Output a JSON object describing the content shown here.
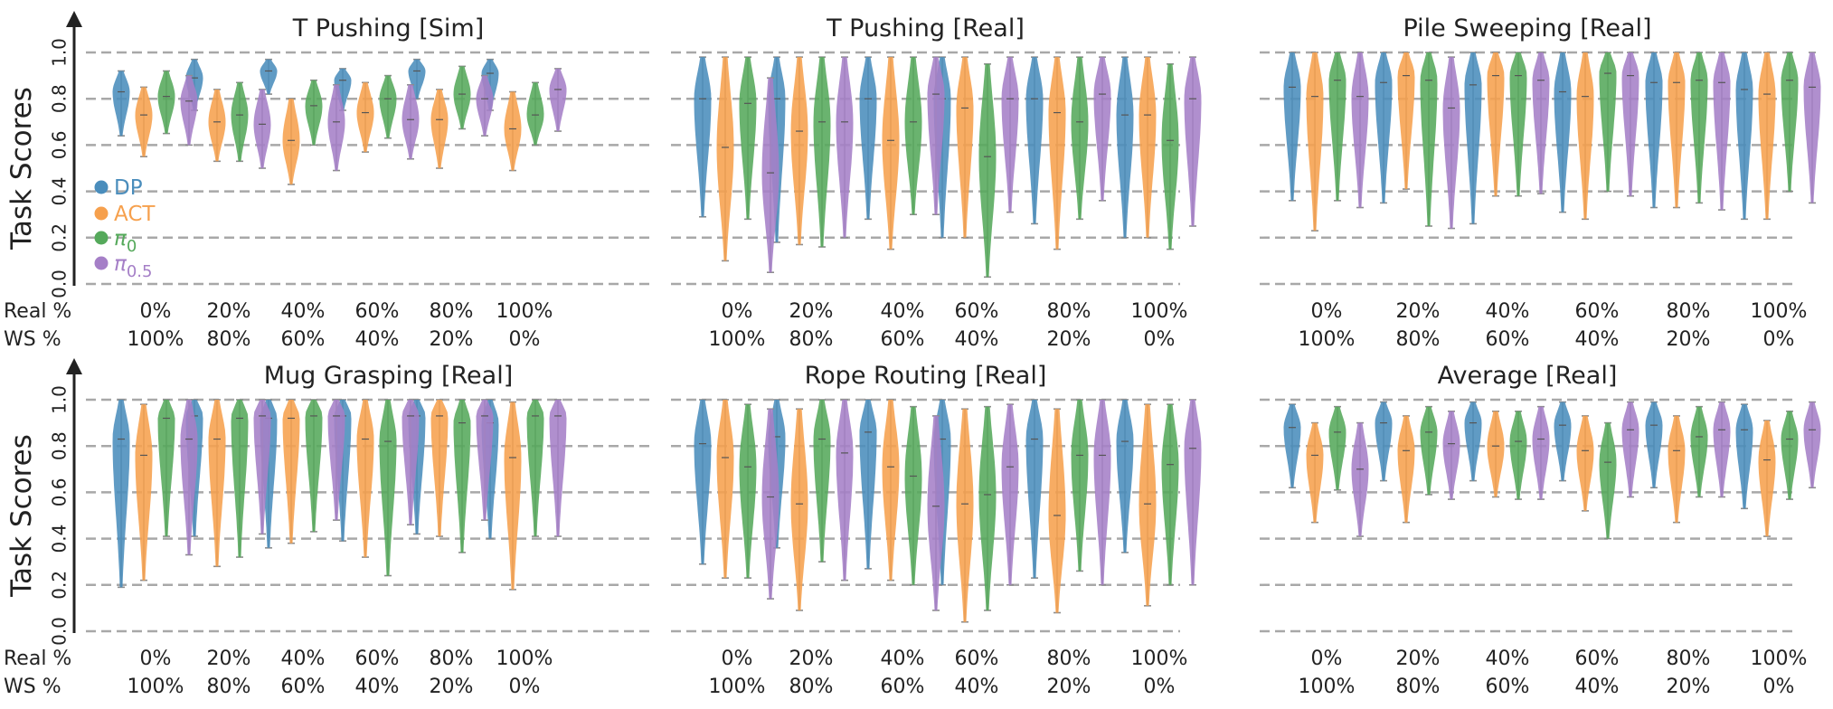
{
  "figure": {
    "y_label": "Task Scores",
    "row_labels": [
      "Real %",
      "WS %"
    ],
    "real_pct": [
      "0%",
      "20%",
      "40%",
      "60%",
      "80%",
      "100%"
    ],
    "ws_pct": [
      "100%",
      "80%",
      "60%",
      "40%",
      "20%",
      "0%"
    ],
    "y_ticks": [
      "0.0",
      "0.2",
      "0.4",
      "0.6",
      "0.8",
      "1.0"
    ]
  },
  "colors": {
    "DP": "#4a8dbc",
    "ACT": "#f6a04d",
    "pi0": "#55a95b",
    "pi05": "#a57fc7",
    "median": "#555555",
    "whisker": "#8c8c8c"
  },
  "legend": [
    {
      "base": "DP",
      "sub": "",
      "key": "DP"
    },
    {
      "base": "ACT",
      "sub": "",
      "key": "ACT"
    },
    {
      "base": "π",
      "sub": "0",
      "key": "pi0"
    },
    {
      "base": "π",
      "sub": "0.5",
      "key": "pi05"
    }
  ],
  "chart_data": [
    {
      "type": "violin",
      "title": "T Pushing [Sim]",
      "ylim": [
        0,
        1
      ],
      "categories": [
        "0%",
        "20%",
        "40%",
        "60%",
        "80%",
        "100%"
      ],
      "series": [
        {
          "name": "DP",
          "stats": [
            [
              0.64,
              0.83,
              0.92
            ],
            [
              0.75,
              0.89,
              0.97
            ],
            [
              0.82,
              0.92,
              0.97
            ],
            [
              0.75,
              0.88,
              0.93
            ],
            [
              0.8,
              0.92,
              0.97
            ],
            [
              0.75,
              0.91,
              0.97
            ]
          ]
        },
        {
          "name": "ACT",
          "stats": [
            [
              0.55,
              0.73,
              0.85
            ],
            [
              0.53,
              0.7,
              0.84
            ],
            [
              0.43,
              0.62,
              0.8
            ],
            [
              0.57,
              0.74,
              0.87
            ],
            [
              0.5,
              0.71,
              0.84
            ],
            [
              0.49,
              0.67,
              0.83
            ]
          ]
        },
        {
          "name": "π0",
          "stats": [
            [
              0.65,
              0.81,
              0.92
            ],
            [
              0.53,
              0.73,
              0.87
            ],
            [
              0.6,
              0.77,
              0.88
            ],
            [
              0.63,
              0.8,
              0.9
            ],
            [
              0.67,
              0.82,
              0.94
            ],
            [
              0.6,
              0.73,
              0.87
            ]
          ]
        },
        {
          "name": "π0.5",
          "stats": [
            [
              0.6,
              0.79,
              0.9
            ],
            [
              0.5,
              0.69,
              0.84
            ],
            [
              0.49,
              0.7,
              0.86
            ],
            [
              0.54,
              0.71,
              0.86
            ],
            [
              0.64,
              0.8,
              0.9
            ],
            [
              0.66,
              0.84,
              0.93
            ]
          ]
        }
      ]
    },
    {
      "type": "violin",
      "title": "T Pushing [Real]",
      "ylim": [
        0,
        1
      ],
      "categories": [
        "0%",
        "20%",
        "40%",
        "60%",
        "80%",
        "100%"
      ],
      "series": [
        {
          "name": "DP",
          "stats": [
            [
              0.29,
              0.8,
              0.98
            ],
            [
              0.18,
              0.8,
              0.98
            ],
            [
              0.28,
              0.8,
              0.98
            ],
            [
              0.2,
              0.8,
              0.98
            ],
            [
              0.26,
              0.8,
              0.98
            ],
            [
              0.2,
              0.73,
              0.98
            ]
          ]
        },
        {
          "name": "ACT",
          "stats": [
            [
              0.1,
              0.59,
              0.98
            ],
            [
              0.17,
              0.66,
              0.98
            ],
            [
              0.15,
              0.62,
              0.98
            ],
            [
              0.2,
              0.76,
              0.98
            ],
            [
              0.15,
              0.74,
              0.98
            ],
            [
              0.2,
              0.73,
              0.98
            ]
          ]
        },
        {
          "name": "π0",
          "stats": [
            [
              0.28,
              0.78,
              0.98
            ],
            [
              0.16,
              0.7,
              0.98
            ],
            [
              0.3,
              0.7,
              0.98
            ],
            [
              0.03,
              0.55,
              0.95
            ],
            [
              0.28,
              0.7,
              0.98
            ],
            [
              0.15,
              0.62,
              0.95
            ]
          ]
        },
        {
          "name": "π0.5",
          "stats": [
            [
              0.05,
              0.48,
              0.89
            ],
            [
              0.2,
              0.7,
              0.98
            ],
            [
              0.3,
              0.82,
              0.98
            ],
            [
              0.31,
              0.8,
              0.98
            ],
            [
              0.36,
              0.82,
              0.98
            ],
            [
              0.25,
              0.8,
              0.98
            ]
          ]
        }
      ]
    },
    {
      "type": "violin",
      "title": "Pile Sweeping [Real]",
      "ylim": [
        0,
        1
      ],
      "categories": [
        "0%",
        "20%",
        "40%",
        "60%",
        "80%",
        "100%"
      ],
      "series": [
        {
          "name": "DP",
          "stats": [
            [
              0.36,
              0.85,
              1.0
            ],
            [
              0.35,
              0.87,
              1.0
            ],
            [
              0.26,
              0.86,
              1.0
            ],
            [
              0.31,
              0.83,
              1.0
            ],
            [
              0.33,
              0.87,
              1.0
            ],
            [
              0.28,
              0.84,
              1.0
            ]
          ]
        },
        {
          "name": "ACT",
          "stats": [
            [
              0.23,
              0.81,
              1.0
            ],
            [
              0.41,
              0.9,
              1.0
            ],
            [
              0.38,
              0.9,
              1.0
            ],
            [
              0.28,
              0.81,
              1.0
            ],
            [
              0.33,
              0.87,
              1.0
            ],
            [
              0.28,
              0.82,
              1.0
            ]
          ]
        },
        {
          "name": "π0",
          "stats": [
            [
              0.36,
              0.88,
              1.0
            ],
            [
              0.25,
              0.88,
              1.0
            ],
            [
              0.38,
              0.9,
              1.0
            ],
            [
              0.4,
              0.91,
              1.0
            ],
            [
              0.35,
              0.88,
              1.0
            ],
            [
              0.4,
              0.88,
              1.0
            ]
          ]
        },
        {
          "name": "π0.5",
          "stats": [
            [
              0.33,
              0.81,
              1.0
            ],
            [
              0.24,
              0.76,
              0.98
            ],
            [
              0.39,
              0.88,
              1.0
            ],
            [
              0.38,
              0.9,
              1.0
            ],
            [
              0.32,
              0.87,
              1.0
            ],
            [
              0.35,
              0.85,
              1.0
            ]
          ]
        }
      ]
    },
    {
      "type": "violin",
      "title": "Mug Grasping [Real]",
      "ylim": [
        0,
        1
      ],
      "categories": [
        "0%",
        "20%",
        "40%",
        "60%",
        "80%",
        "100%"
      ],
      "series": [
        {
          "name": "DP",
          "stats": [
            [
              0.19,
              0.83,
              1.0
            ],
            [
              0.41,
              0.93,
              1.0
            ],
            [
              0.36,
              0.92,
              1.0
            ],
            [
              0.39,
              0.93,
              1.0
            ],
            [
              0.42,
              0.93,
              1.0
            ],
            [
              0.4,
              0.9,
              1.0
            ]
          ]
        },
        {
          "name": "ACT",
          "stats": [
            [
              0.22,
              0.76,
              0.98
            ],
            [
              0.28,
              0.83,
              1.0
            ],
            [
              0.38,
              0.92,
              1.0
            ],
            [
              0.32,
              0.83,
              1.0
            ],
            [
              0.41,
              0.93,
              1.0
            ],
            [
              0.18,
              0.75,
              0.99
            ]
          ]
        },
        {
          "name": "π0",
          "stats": [
            [
              0.41,
              0.92,
              1.0
            ],
            [
              0.32,
              0.92,
              1.0
            ],
            [
              0.43,
              0.93,
              1.0
            ],
            [
              0.24,
              0.82,
              1.0
            ],
            [
              0.34,
              0.9,
              1.0
            ],
            [
              0.41,
              0.93,
              1.0
            ]
          ]
        },
        {
          "name": "π0.5",
          "stats": [
            [
              0.33,
              0.83,
              1.0
            ],
            [
              0.42,
              0.93,
              1.0
            ],
            [
              0.48,
              0.93,
              1.0
            ],
            [
              0.46,
              0.93,
              1.0
            ],
            [
              0.48,
              0.93,
              1.0
            ],
            [
              0.41,
              0.93,
              1.0
            ]
          ]
        }
      ]
    },
    {
      "type": "violin",
      "title": "Rope Routing [Real]",
      "ylim": [
        0,
        1
      ],
      "categories": [
        "0%",
        "20%",
        "40%",
        "60%",
        "80%",
        "100%"
      ],
      "series": [
        {
          "name": "DP",
          "stats": [
            [
              0.29,
              0.81,
              1.0
            ],
            [
              0.36,
              0.84,
              1.0
            ],
            [
              0.27,
              0.86,
              1.0
            ],
            [
              0.2,
              0.83,
              1.0
            ],
            [
              0.23,
              0.83,
              1.0
            ],
            [
              0.34,
              0.82,
              1.0
            ]
          ]
        },
        {
          "name": "ACT",
          "stats": [
            [
              0.23,
              0.75,
              1.0
            ],
            [
              0.09,
              0.55,
              0.96
            ],
            [
              0.22,
              0.71,
              1.0
            ],
            [
              0.04,
              0.55,
              0.96
            ],
            [
              0.08,
              0.5,
              0.96
            ],
            [
              0.11,
              0.55,
              0.98
            ]
          ]
        },
        {
          "name": "π0",
          "stats": [
            [
              0.23,
              0.71,
              0.98
            ],
            [
              0.3,
              0.83,
              1.0
            ],
            [
              0.2,
              0.67,
              0.97
            ],
            [
              0.09,
              0.59,
              0.97
            ],
            [
              0.26,
              0.76,
              1.0
            ],
            [
              0.2,
              0.72,
              0.98
            ]
          ]
        },
        {
          "name": "π0.5",
          "stats": [
            [
              0.14,
              0.58,
              0.96
            ],
            [
              0.22,
              0.77,
              1.0
            ],
            [
              0.09,
              0.54,
              0.93
            ],
            [
              0.2,
              0.71,
              0.98
            ],
            [
              0.2,
              0.76,
              1.0
            ],
            [
              0.2,
              0.79,
              1.0
            ]
          ]
        }
      ]
    },
    {
      "type": "violin",
      "title": "Average [Real]",
      "ylim": [
        0,
        1
      ],
      "categories": [
        "0%",
        "20%",
        "40%",
        "60%",
        "80%",
        "100%"
      ],
      "series": [
        {
          "name": "DP",
          "stats": [
            [
              0.62,
              0.88,
              0.98
            ],
            [
              0.65,
              0.9,
              0.99
            ],
            [
              0.65,
              0.9,
              0.99
            ],
            [
              0.65,
              0.89,
              0.99
            ],
            [
              0.62,
              0.89,
              0.99
            ],
            [
              0.53,
              0.87,
              0.98
            ]
          ]
        },
        {
          "name": "ACT",
          "stats": [
            [
              0.47,
              0.76,
              0.9
            ],
            [
              0.47,
              0.78,
              0.93
            ],
            [
              0.58,
              0.8,
              0.95
            ],
            [
              0.52,
              0.78,
              0.93
            ],
            [
              0.47,
              0.78,
              0.93
            ],
            [
              0.41,
              0.74,
              0.91
            ]
          ]
        },
        {
          "name": "π0",
          "stats": [
            [
              0.61,
              0.86,
              0.97
            ],
            [
              0.59,
              0.86,
              0.97
            ],
            [
              0.57,
              0.82,
              0.95
            ],
            [
              0.4,
              0.73,
              0.9
            ],
            [
              0.58,
              0.84,
              0.97
            ],
            [
              0.57,
              0.83,
              0.95
            ]
          ]
        },
        {
          "name": "π0.5",
          "stats": [
            [
              0.41,
              0.7,
              0.9
            ],
            [
              0.57,
              0.81,
              0.95
            ],
            [
              0.57,
              0.83,
              0.97
            ],
            [
              0.58,
              0.87,
              0.99
            ],
            [
              0.58,
              0.87,
              0.99
            ],
            [
              0.62,
              0.87,
              0.99
            ]
          ]
        }
      ]
    }
  ]
}
